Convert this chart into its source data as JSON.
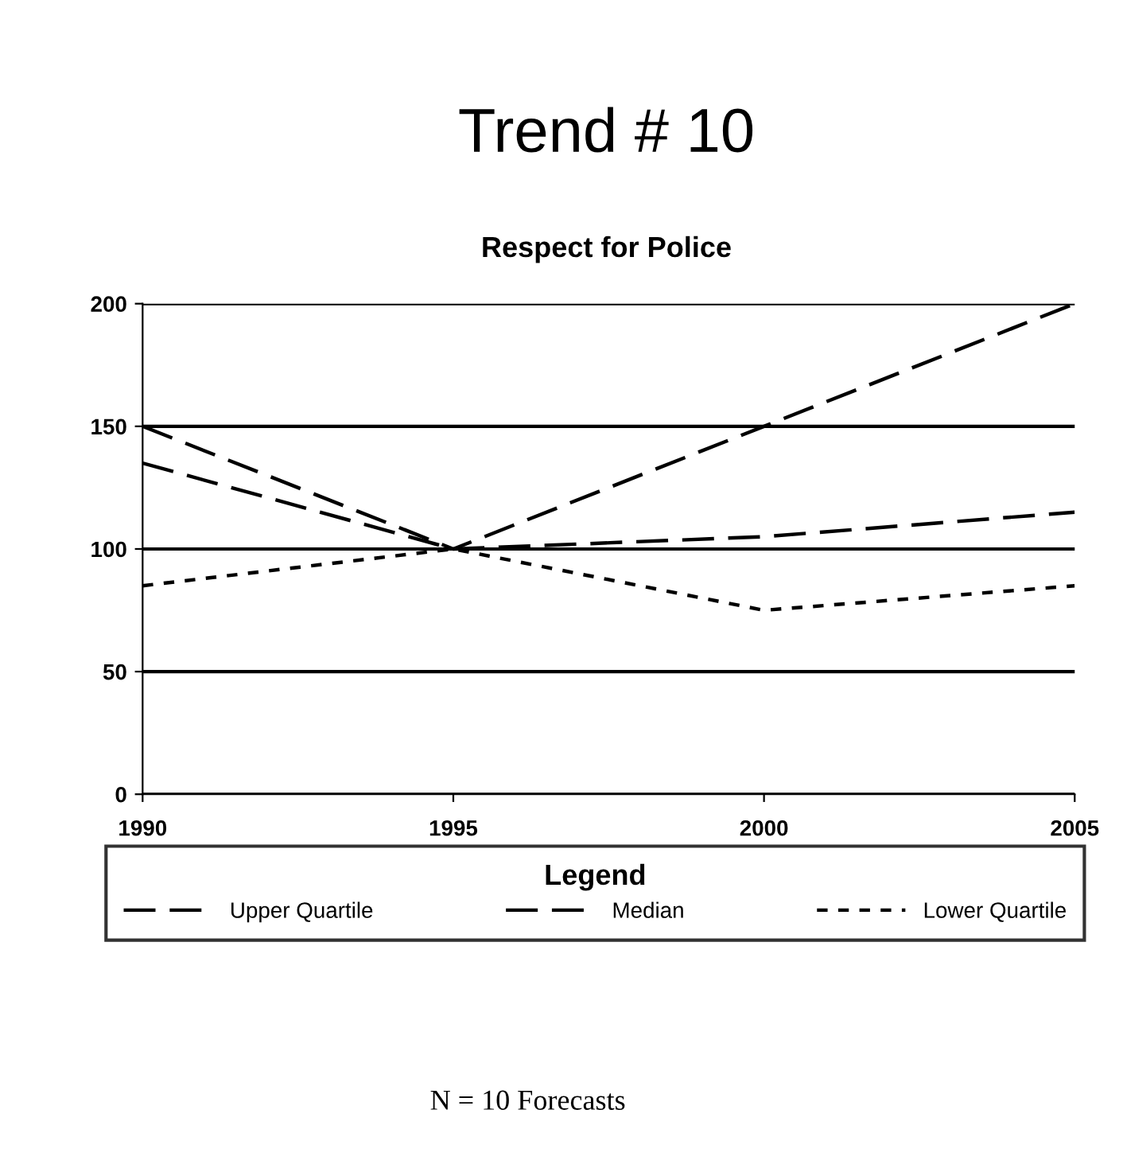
{
  "chart_data": {
    "type": "line",
    "title": "Trend # 10",
    "subtitle": "Respect for Police",
    "x": [
      1990,
      1995,
      2000,
      2005
    ],
    "series": [
      {
        "name": "Upper Quartile",
        "color": "#000000",
        "line_style": "dashed",
        "values": [
          150,
          100,
          150,
          200
        ]
      },
      {
        "name": "Median",
        "color": "#000000",
        "line_style": "dashed",
        "values": [
          135,
          100,
          105,
          115
        ]
      },
      {
        "name": "Lower Quartile",
        "color": "#000000",
        "line_style": "dotted",
        "values": [
          85,
          100,
          75,
          85
        ]
      }
    ],
    "xlim": [
      1990,
      2005
    ],
    "xticks": [
      1990,
      1995,
      2000,
      2005
    ],
    "ylim": [
      0,
      200
    ],
    "yticks": [
      0,
      50,
      100,
      150,
      200
    ],
    "grid": "y",
    "legend": "bottom",
    "legend_title": "Legend",
    "marker": "none",
    "annotations": [
      "N = 10 Forecasts"
    ]
  }
}
